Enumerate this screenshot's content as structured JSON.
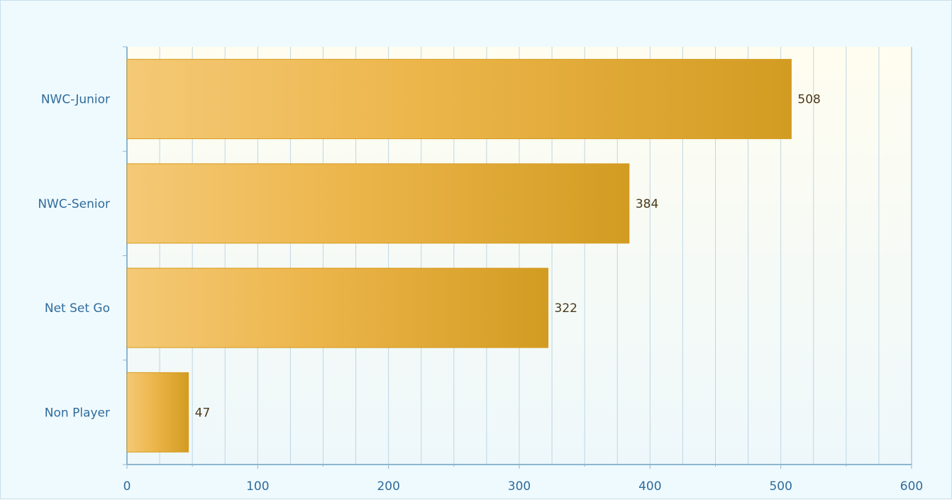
{
  "chart_data": {
    "type": "bar",
    "orientation": "horizontal",
    "categories": [
      "NWC-Junior",
      "NWC-Senior",
      "Net Set Go",
      "Non Player"
    ],
    "values": [
      508,
      384,
      322,
      47
    ],
    "value_labels": [
      "508",
      "384",
      "322",
      "47"
    ],
    "title": "",
    "xlabel": "",
    "ylabel": "",
    "xlim": [
      0,
      600
    ],
    "x_ticks": [
      "0",
      "100",
      "200",
      "300",
      "400",
      "500",
      "600"
    ],
    "grid": true,
    "legend": "none",
    "colors": {
      "bar_light": "#f4c976",
      "bar_mid": "#ecb54a",
      "bar_dark": "#d29c22",
      "bar_border": "#d79a1e",
      "axis": "#8db6cf",
      "grid": "#bfd6e4",
      "plot_top": "#fffdf0",
      "plot_bottom": "#eef8fb",
      "background": "#effaff"
    }
  }
}
